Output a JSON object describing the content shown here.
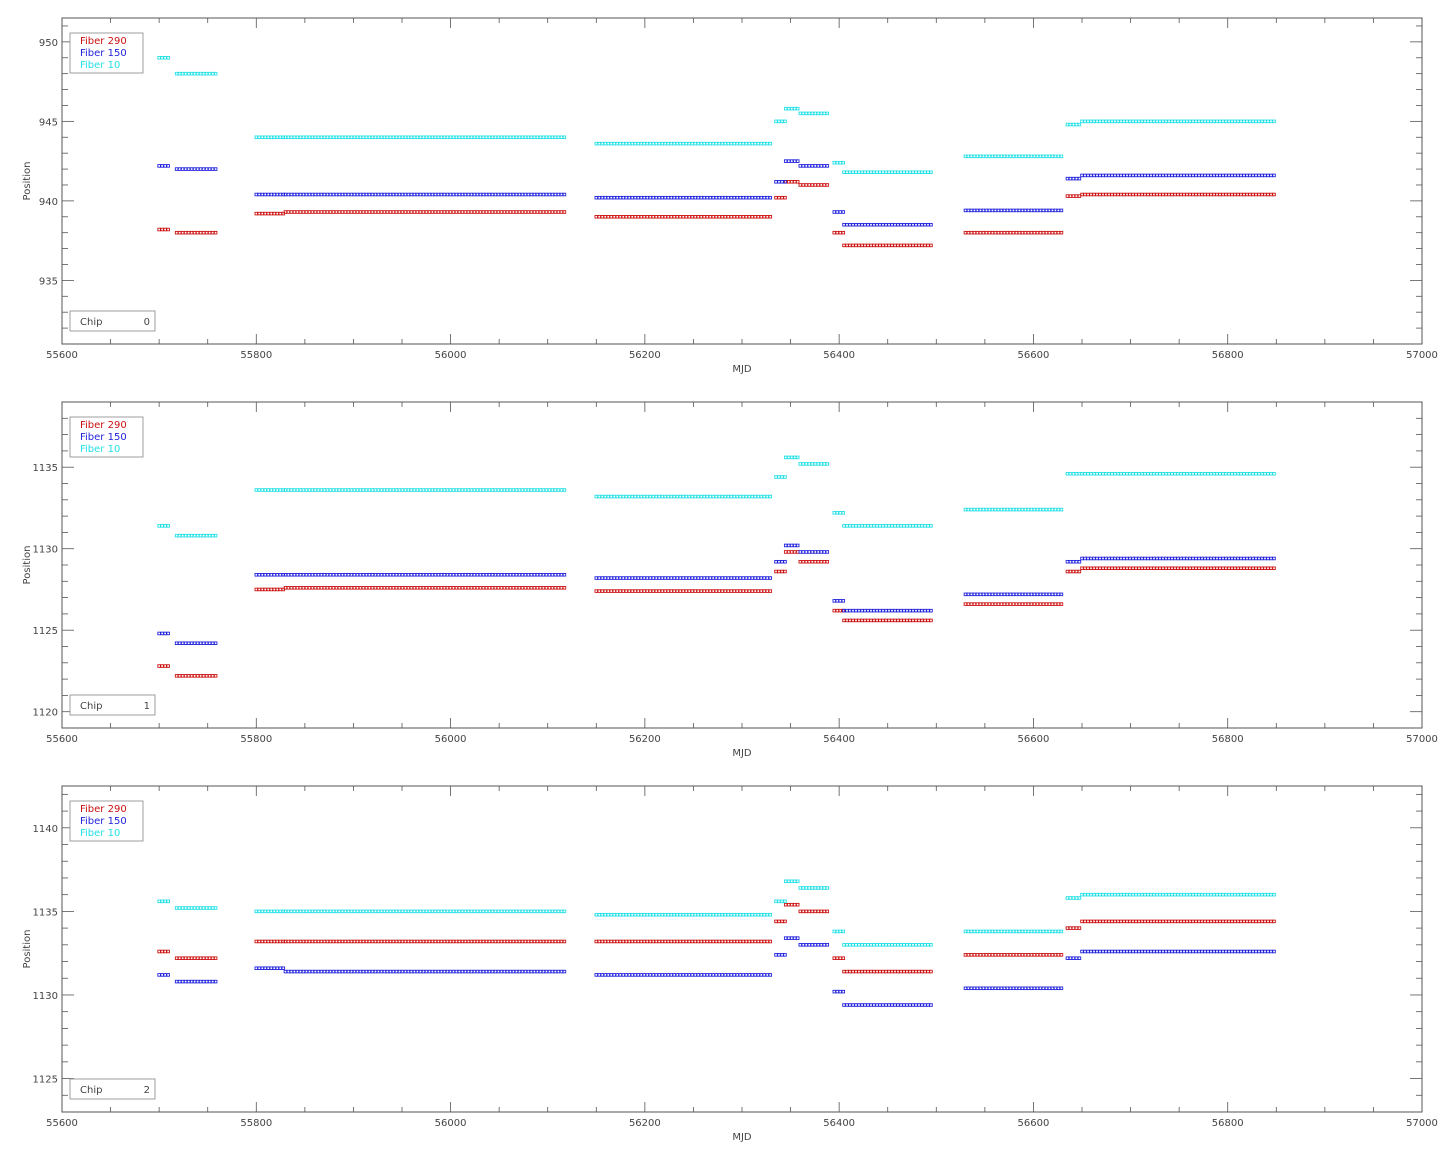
{
  "colors": {
    "fiber290": "#cc1111",
    "fiber150": "#2222dd",
    "fiber10": "#22e0e6",
    "axis": "#555555"
  },
  "chart_data": [
    {
      "type": "scatter",
      "xlabel": "MJD",
      "ylabel": "Position",
      "xlim": [
        55600,
        57000
      ],
      "ylim": [
        931,
        951.5
      ],
      "xticks": [
        55600,
        55800,
        56000,
        56200,
        56400,
        56600,
        56800,
        57000
      ],
      "yticks": [
        935,
        940,
        945,
        950
      ],
      "legend": [
        "Fiber 290",
        "Fiber 150",
        "Fiber 10"
      ],
      "chip_label": "Chip",
      "chip_value": "0",
      "series": [
        {
          "name": "Fiber 290",
          "segments": [
            [
              55700,
              55712,
              938.2
            ],
            [
              55718,
              55760,
              938.0
            ],
            [
              55800,
              55830,
              939.2
            ],
            [
              55830,
              56120,
              939.3
            ],
            [
              56150,
              56330,
              939.0
            ],
            [
              56335,
              56345,
              940.2
            ],
            [
              56345,
              56360,
              941.2
            ],
            [
              56360,
              56390,
              941.0
            ],
            [
              56395,
              56405,
              938.0
            ],
            [
              56405,
              56495,
              937.2
            ],
            [
              56530,
              56630,
              938.0
            ],
            [
              56635,
              56650,
              940.3
            ],
            [
              56650,
              56850,
              940.4
            ]
          ]
        },
        {
          "name": "Fiber 150",
          "segments": [
            [
              55700,
              55712,
              942.2
            ],
            [
              55718,
              55760,
              942.0
            ],
            [
              55800,
              55830,
              940.4
            ],
            [
              55830,
              56120,
              940.4
            ],
            [
              56150,
              56330,
              940.2
            ],
            [
              56335,
              56345,
              941.2
            ],
            [
              56345,
              56360,
              942.5
            ],
            [
              56360,
              56390,
              942.2
            ],
            [
              56395,
              56405,
              939.3
            ],
            [
              56405,
              56495,
              938.5
            ],
            [
              56530,
              56630,
              939.4
            ],
            [
              56635,
              56650,
              941.4
            ],
            [
              56650,
              56850,
              941.6
            ]
          ]
        },
        {
          "name": "Fiber 10",
          "segments": [
            [
              55700,
              55712,
              949.0
            ],
            [
              55718,
              55760,
              948.0
            ],
            [
              55800,
              55830,
              944.0
            ],
            [
              55830,
              56120,
              944.0
            ],
            [
              56150,
              56330,
              943.6
            ],
            [
              56335,
              56345,
              945.0
            ],
            [
              56345,
              56360,
              945.8
            ],
            [
              56360,
              56390,
              945.5
            ],
            [
              56395,
              56405,
              942.4
            ],
            [
              56405,
              56495,
              941.8
            ],
            [
              56530,
              56630,
              942.8
            ],
            [
              56635,
              56650,
              944.8
            ],
            [
              56650,
              56850,
              945.0
            ]
          ]
        }
      ]
    },
    {
      "type": "scatter",
      "xlabel": "MJD",
      "ylabel": "Position",
      "xlim": [
        55600,
        57000
      ],
      "ylim": [
        1119,
        1139
      ],
      "xticks": [
        55600,
        55800,
        56000,
        56200,
        56400,
        56600,
        56800,
        57000
      ],
      "yticks": [
        1120,
        1125,
        1130,
        1135
      ],
      "legend": [
        "Fiber 290",
        "Fiber 150",
        "Fiber 10"
      ],
      "chip_label": "Chip",
      "chip_value": "1",
      "series": [
        {
          "name": "Fiber 290",
          "segments": [
            [
              55700,
              55712,
              1122.8
            ],
            [
              55718,
              55760,
              1122.2
            ],
            [
              55800,
              55830,
              1127.5
            ],
            [
              55830,
              56120,
              1127.6
            ],
            [
              56150,
              56330,
              1127.4
            ],
            [
              56335,
              56345,
              1128.6
            ],
            [
              56345,
              56360,
              1129.8
            ],
            [
              56360,
              56390,
              1129.2
            ],
            [
              56395,
              56405,
              1126.2
            ],
            [
              56405,
              56495,
              1125.6
            ],
            [
              56530,
              56630,
              1126.6
            ],
            [
              56635,
              56650,
              1128.6
            ],
            [
              56650,
              56850,
              1128.8
            ]
          ]
        },
        {
          "name": "Fiber 150",
          "segments": [
            [
              55700,
              55712,
              1124.8
            ],
            [
              55718,
              55760,
              1124.2
            ],
            [
              55800,
              55830,
              1128.4
            ],
            [
              55830,
              56120,
              1128.4
            ],
            [
              56150,
              56330,
              1128.2
            ],
            [
              56335,
              56345,
              1129.2
            ],
            [
              56345,
              56360,
              1130.2
            ],
            [
              56360,
              56390,
              1129.8
            ],
            [
              56395,
              56405,
              1126.8
            ],
            [
              56405,
              56495,
              1126.2
            ],
            [
              56530,
              56630,
              1127.2
            ],
            [
              56635,
              56650,
              1129.2
            ],
            [
              56650,
              56850,
              1129.4
            ]
          ]
        },
        {
          "name": "Fiber 10",
          "segments": [
            [
              55700,
              55712,
              1131.4
            ],
            [
              55718,
              55760,
              1130.8
            ],
            [
              55800,
              55830,
              1133.6
            ],
            [
              55830,
              56120,
              1133.6
            ],
            [
              56150,
              56330,
              1133.2
            ],
            [
              56335,
              56345,
              1134.4
            ],
            [
              56345,
              56360,
              1135.6
            ],
            [
              56360,
              56390,
              1135.2
            ],
            [
              56395,
              56405,
              1132.2
            ],
            [
              56405,
              56495,
              1131.4
            ],
            [
              56530,
              56630,
              1132.4
            ],
            [
              56635,
              56650,
              1134.6
            ],
            [
              56650,
              56850,
              1134.6
            ]
          ]
        }
      ]
    },
    {
      "type": "scatter",
      "xlabel": "MJD",
      "ylabel": "Position",
      "xlim": [
        55600,
        57000
      ],
      "ylim": [
        1123,
        1142.5
      ],
      "xticks": [
        55600,
        55800,
        56000,
        56200,
        56400,
        56600,
        56800,
        57000
      ],
      "yticks": [
        1125,
        1130,
        1135,
        1140
      ],
      "legend": [
        "Fiber 290",
        "Fiber 150",
        "Fiber 10"
      ],
      "chip_label": "Chip",
      "chip_value": "2",
      "series": [
        {
          "name": "Fiber 290",
          "segments": [
            [
              55700,
              55712,
              1132.6
            ],
            [
              55718,
              55760,
              1132.2
            ],
            [
              55800,
              55830,
              1133.2
            ],
            [
              55830,
              56120,
              1133.2
            ],
            [
              56150,
              56330,
              1133.2
            ],
            [
              56335,
              56345,
              1134.4
            ],
            [
              56345,
              56360,
              1135.4
            ],
            [
              56360,
              56390,
              1135.0
            ],
            [
              56395,
              56405,
              1132.2
            ],
            [
              56405,
              56495,
              1131.4
            ],
            [
              56530,
              56630,
              1132.4
            ],
            [
              56635,
              56650,
              1134.0
            ],
            [
              56650,
              56850,
              1134.4
            ]
          ]
        },
        {
          "name": "Fiber 150",
          "segments": [
            [
              55700,
              55712,
              1131.2
            ],
            [
              55718,
              55760,
              1130.8
            ],
            [
              55800,
              55830,
              1131.6
            ],
            [
              55830,
              56120,
              1131.4
            ],
            [
              56150,
              56330,
              1131.2
            ],
            [
              56335,
              56345,
              1132.4
            ],
            [
              56345,
              56360,
              1133.4
            ],
            [
              56360,
              56390,
              1133.0
            ],
            [
              56395,
              56405,
              1130.2
            ],
            [
              56405,
              56495,
              1129.4
            ],
            [
              56530,
              56630,
              1130.4
            ],
            [
              56635,
              56650,
              1132.2
            ],
            [
              56650,
              56850,
              1132.6
            ]
          ]
        },
        {
          "name": "Fiber 10",
          "segments": [
            [
              55700,
              55712,
              1135.6
            ],
            [
              55718,
              55760,
              1135.2
            ],
            [
              55800,
              55830,
              1135.0
            ],
            [
              55830,
              56120,
              1135.0
            ],
            [
              56150,
              56330,
              1134.8
            ],
            [
              56335,
              56345,
              1135.6
            ],
            [
              56345,
              56360,
              1136.8
            ],
            [
              56360,
              56390,
              1136.4
            ],
            [
              56395,
              56405,
              1133.8
            ],
            [
              56405,
              56495,
              1133.0
            ],
            [
              56530,
              56630,
              1133.8
            ],
            [
              56635,
              56650,
              1135.8
            ],
            [
              56650,
              56850,
              1136.0
            ]
          ]
        }
      ]
    }
  ]
}
